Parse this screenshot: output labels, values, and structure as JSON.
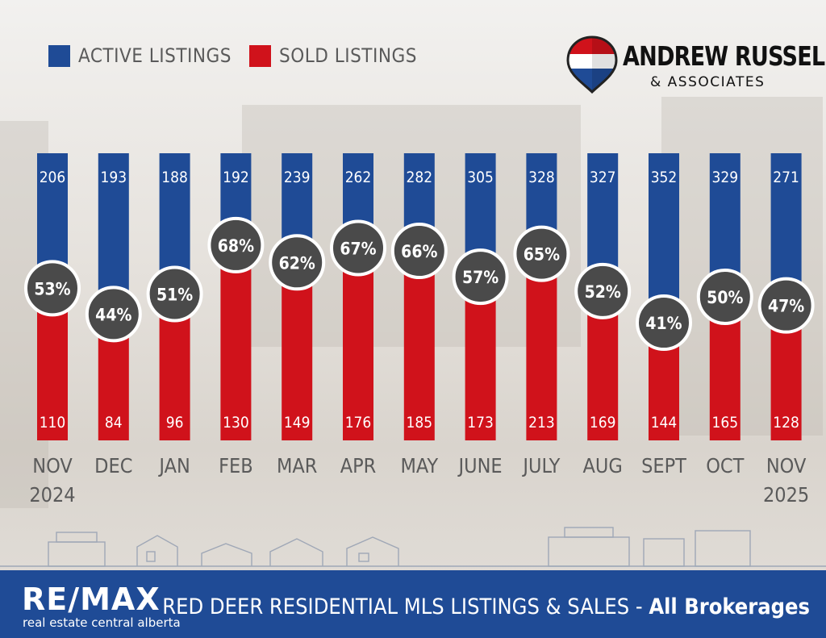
{
  "legend": {
    "active_label": "ACTIVE LISTINGS",
    "sold_label": "SOLD LISTINGS"
  },
  "logo": {
    "brand": "ANDREW RUSSELL",
    "sub": "& ASSOCIATES"
  },
  "footer": {
    "remax": "RE/MAX",
    "tagline": "real estate central alberta",
    "title": "RED DEER RESIDENTIAL MLS LISTINGS & SALES - ",
    "title_suffix": "All Brokerages"
  },
  "colors": {
    "active": "#1f4b96",
    "sold": "#d0121b",
    "badge": "#4a4a4a",
    "footer": "#1f4b96",
    "month_text": "#5a5a5a"
  },
  "chart_data": {
    "type": "bar",
    "stacking": "percent",
    "title": "RED DEER RESIDENTIAL MLS LISTINGS & SALES - All Brokerages",
    "categories": [
      "NOV 2024",
      "DEC",
      "JAN",
      "FEB",
      "MAR",
      "APR",
      "MAY",
      "JUNE",
      "JULY",
      "AUG",
      "SEPT",
      "OCT",
      "NOV 2025"
    ],
    "category_labels": [
      [
        "NOV",
        "2024"
      ],
      [
        "DEC"
      ],
      [
        "JAN"
      ],
      [
        "FEB"
      ],
      [
        "MAR"
      ],
      [
        "APR"
      ],
      [
        "MAY"
      ],
      [
        "JUNE"
      ],
      [
        "JULY"
      ],
      [
        "AUG"
      ],
      [
        "SEPT"
      ],
      [
        "OCT"
      ],
      [
        "NOV",
        "2025"
      ]
    ],
    "series": [
      {
        "name": "ACTIVE LISTINGS",
        "values": [
          206,
          193,
          188,
          192,
          239,
          262,
          282,
          305,
          328,
          327,
          352,
          329,
          271
        ]
      },
      {
        "name": "SOLD LISTINGS",
        "values": [
          110,
          84,
          96,
          130,
          149,
          176,
          185,
          173,
          213,
          169,
          144,
          165,
          128
        ]
      }
    ],
    "ratio_labels": [
      "53%",
      "44%",
      "51%",
      "68%",
      "62%",
      "67%",
      "66%",
      "57%",
      "65%",
      "52%",
      "41%",
      "50%",
      "47%"
    ],
    "ratio_values": [
      53,
      44,
      51,
      68,
      62,
      67,
      66,
      57,
      65,
      52,
      41,
      50,
      47
    ],
    "legend_position": "top-left"
  }
}
